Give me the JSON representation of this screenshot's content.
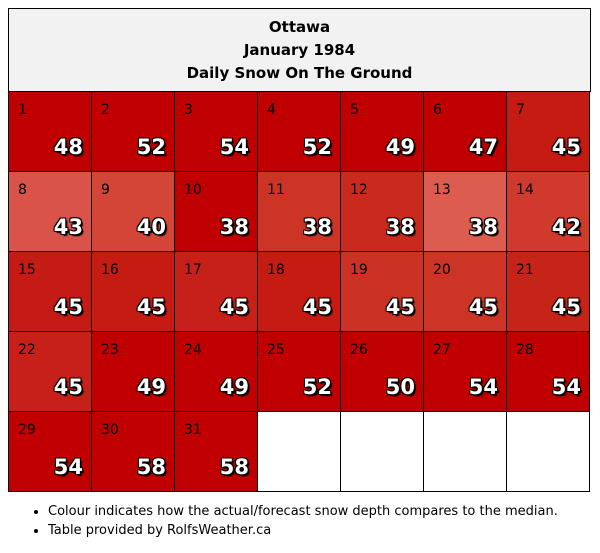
{
  "title": {
    "city": "Ottawa",
    "period": "January 1984",
    "subtitle": "Daily Snow On The Ground"
  },
  "chart_data": {
    "type": "table",
    "title": "Daily Snow On The Ground",
    "columns": 7,
    "days": [
      {
        "day": "1",
        "value": 48,
        "color": "#c00000"
      },
      {
        "day": "2",
        "value": 52,
        "color": "#c00000"
      },
      {
        "day": "3",
        "value": 54,
        "color": "#c00000"
      },
      {
        "day": "4",
        "value": 52,
        "color": "#c00000"
      },
      {
        "day": "5",
        "value": 49,
        "color": "#c00000"
      },
      {
        "day": "6",
        "value": 47,
        "color": "#c00000"
      },
      {
        "day": "7",
        "value": 45,
        "color": "#c41b13"
      },
      {
        "day": "8",
        "value": 43,
        "color": "#d9534a"
      },
      {
        "day": "9",
        "value": 40,
        "color": "#d24537"
      },
      {
        "day": "10",
        "value": 38,
        "color": "#c00000"
      },
      {
        "day": "11",
        "value": 38,
        "color": "#cc3426"
      },
      {
        "day": "12",
        "value": 38,
        "color": "#c92a1d"
      },
      {
        "day": "13",
        "value": 38,
        "color": "#dc5d50"
      },
      {
        "day": "14",
        "value": 42,
        "color": "#cf3a2c"
      },
      {
        "day": "15",
        "value": 45,
        "color": "#c41c14"
      },
      {
        "day": "16",
        "value": 45,
        "color": "#c41b13"
      },
      {
        "day": "17",
        "value": 45,
        "color": "#c62018"
      },
      {
        "day": "18",
        "value": 45,
        "color": "#c41b13"
      },
      {
        "day": "19",
        "value": 45,
        "color": "#cb3224"
      },
      {
        "day": "20",
        "value": 45,
        "color": "#cc3426"
      },
      {
        "day": "21",
        "value": 45,
        "color": "#c62319"
      },
      {
        "day": "22",
        "value": 45,
        "color": "#c62018"
      },
      {
        "day": "23",
        "value": 49,
        "color": "#c00000"
      },
      {
        "day": "24",
        "value": 49,
        "color": "#c00000"
      },
      {
        "day": "25",
        "value": 52,
        "color": "#c00000"
      },
      {
        "day": "26",
        "value": 50,
        "color": "#c00000"
      },
      {
        "day": "27",
        "value": 54,
        "color": "#c00000"
      },
      {
        "day": "28",
        "value": 54,
        "color": "#c00000"
      },
      {
        "day": "29",
        "value": 54,
        "color": "#c00000"
      },
      {
        "day": "30",
        "value": 58,
        "color": "#c00000"
      },
      {
        "day": "31",
        "value": 58,
        "color": "#c00000"
      }
    ]
  },
  "notes": [
    "Colour indicates how the actual/forecast snow depth compares to the median.",
    "Table provided by RolfsWeather.ca"
  ]
}
